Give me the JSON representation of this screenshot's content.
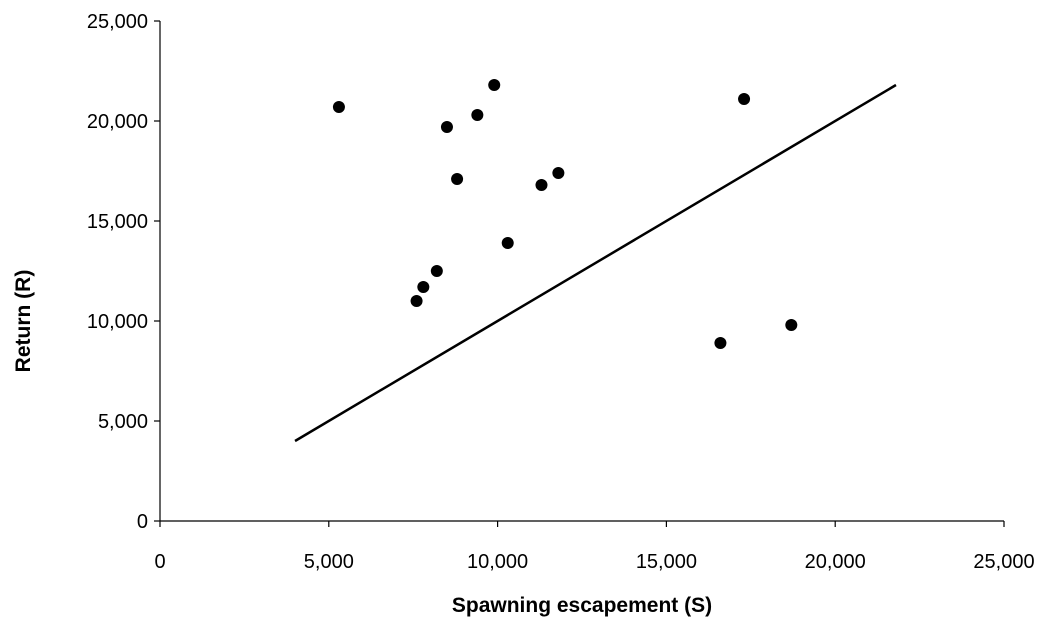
{
  "chart_data": {
    "type": "scatter",
    "title": "",
    "xlabel": "Spawning escapement (S)",
    "ylabel": "Return (R)",
    "xlim": [
      0,
      25000
    ],
    "ylim": [
      0,
      25000
    ],
    "x_ticks": [
      0,
      5000,
      10000,
      15000,
      20000,
      25000
    ],
    "x_tick_labels": [
      "0",
      "5,000",
      "10,000",
      "15,000",
      "20,000",
      "25,000"
    ],
    "y_ticks": [
      0,
      5000,
      10000,
      15000,
      20000,
      25000
    ],
    "y_tick_labels": [
      "0",
      "5,000",
      "10,000",
      "15,000",
      "20,000",
      "25,000"
    ],
    "grid": false,
    "legend": "none",
    "series": [
      {
        "kind": "scatter",
        "color": "#000000",
        "points": [
          {
            "x": 5300,
            "y": 20700
          },
          {
            "x": 7600,
            "y": 11000
          },
          {
            "x": 7800,
            "y": 11700
          },
          {
            "x": 8200,
            "y": 12500
          },
          {
            "x": 8500,
            "y": 19700
          },
          {
            "x": 8800,
            "y": 17100
          },
          {
            "x": 9400,
            "y": 20300
          },
          {
            "x": 9900,
            "y": 21800
          },
          {
            "x": 10300,
            "y": 13900
          },
          {
            "x": 11300,
            "y": 16800
          },
          {
            "x": 11800,
            "y": 17400
          },
          {
            "x": 16600,
            "y": 8900
          },
          {
            "x": 17300,
            "y": 21100
          },
          {
            "x": 18700,
            "y": 9800
          }
        ]
      },
      {
        "kind": "line",
        "color": "#000000",
        "points": [
          {
            "x": 4000,
            "y": 4000
          },
          {
            "x": 21800,
            "y": 21800
          }
        ]
      }
    ]
  }
}
